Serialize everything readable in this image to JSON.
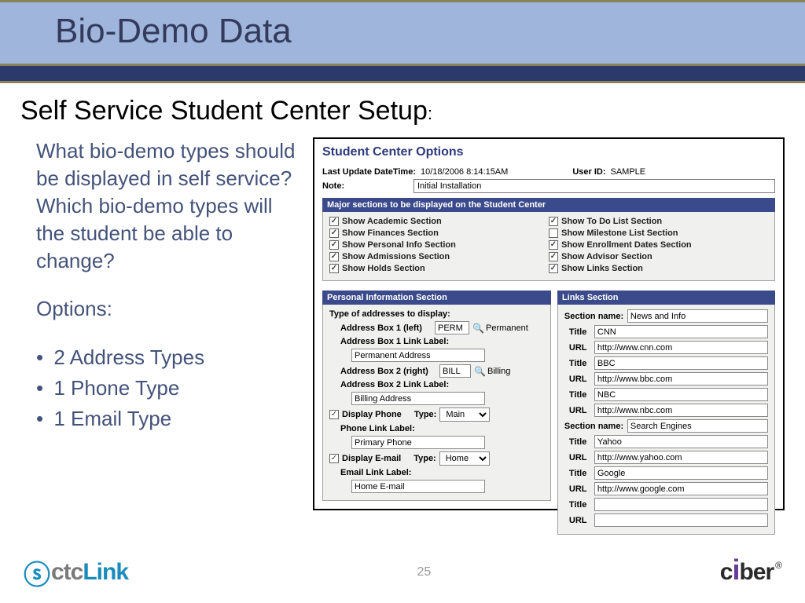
{
  "slide": {
    "header_title": "Bio-Demo Data",
    "subtitle": "Self Service Student Center Setup",
    "page_number": "25"
  },
  "text": {
    "question": "What bio-demo types should be displayed in self service? Which bio-demo types will the student be able to change?",
    "options_label": "Options:",
    "options": [
      "2 Address Types",
      "1 Phone Type",
      "1 Email Type"
    ]
  },
  "sc": {
    "title": "Student Center Options",
    "last_update_label": "Last Update DateTime:",
    "last_update_value": "10/18/2006  8:14:15AM",
    "user_id_label": "User ID:",
    "user_id_value": "SAMPLE",
    "note_label": "Note:",
    "note_value": "Initial Installation",
    "major_bar": "Major sections to be displayed on the Student Center",
    "major_left": [
      {
        "checked": true,
        "label": "Show Academic Section"
      },
      {
        "checked": true,
        "label": "Show Finances Section"
      },
      {
        "checked": true,
        "label": "Show Personal Info Section"
      },
      {
        "checked": true,
        "label": "Show Admissions Section"
      },
      {
        "checked": true,
        "label": "Show Holds Section"
      }
    ],
    "major_right": [
      {
        "checked": true,
        "label": "Show To Do List Section"
      },
      {
        "checked": false,
        "label": "Show Milestone List Section"
      },
      {
        "checked": true,
        "label": "Show Enrollment Dates Section"
      },
      {
        "checked": true,
        "label": "Show Advisor Section"
      },
      {
        "checked": true,
        "label": "Show Links Section"
      }
    ],
    "personal_bar": "Personal Information Section",
    "links_bar": "Links Section",
    "personal": {
      "addr_display_label": "Type of addresses to display:",
      "box1_label": "Address Box 1 (left)",
      "box1_code": "PERM",
      "box1_text": "Permanent",
      "box1_link_label": "Address Box 1 Link Label:",
      "box1_link_value": "Permanent Address",
      "box2_label": "Address Box 2 (right)",
      "box2_code": "BILL",
      "box2_text": "Billing",
      "box2_link_label": "Address Box 2 Link Label:",
      "box2_link_value": "Billing Address",
      "display_phone_label": "Display Phone",
      "phone_type_label": "Type:",
      "phone_type_value": "Main",
      "phone_link_label": "Phone Link Label:",
      "phone_link_value": "Primary Phone",
      "display_email_label": "Display E-mail",
      "email_type_label": "Type:",
      "email_type_value": "Home",
      "email_link_label": "Email Link Label:",
      "email_link_value": "Home E-mail"
    },
    "links": {
      "section_name_label": "Section name:",
      "title_label": "Title",
      "url_label": "URL",
      "section1_name": "News and Info",
      "section1_rows": [
        {
          "title": "CNN",
          "url": "http://www.cnn.com"
        },
        {
          "title": "BBC",
          "url": "http://www.bbc.com"
        },
        {
          "title": "NBC",
          "url": "http://www.nbc.com"
        }
      ],
      "section2_name": "Search Engines",
      "section2_rows": [
        {
          "title": "Yahoo",
          "url": "http://www.yahoo.com"
        },
        {
          "title": "Google",
          "url": "http://www.google.com"
        },
        {
          "title": "",
          "url": ""
        }
      ]
    }
  },
  "colors": {
    "header_bg": "#9fb5dc",
    "stripe_bg": "#2c3a6b",
    "accent_border": "#8a8158",
    "body_text": "#44537a",
    "section_bar_bg": "#3a4a8a"
  },
  "logos": {
    "left_ctc": "ctc",
    "left_link": "Link",
    "right": "ciber"
  }
}
